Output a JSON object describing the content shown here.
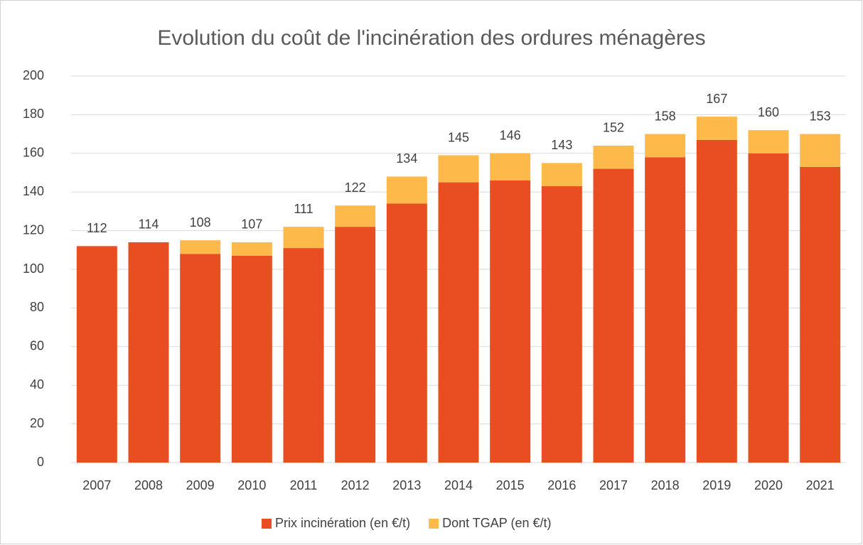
{
  "chart_data": {
    "type": "stacked_bar",
    "title": "Evolution du coût de l'incinération des ordures ménagères",
    "categories": [
      "2007",
      "2008",
      "2009",
      "2010",
      "2011",
      "2012",
      "2013",
      "2014",
      "2015",
      "2016",
      "2017",
      "2018",
      "2019",
      "2020",
      "2021"
    ],
    "series": [
      {
        "name": "Prix incinération (en €/t)",
        "color": "#e84e22",
        "values": [
          112,
          114,
          108,
          107,
          111,
          122,
          134,
          145,
          146,
          143,
          152,
          158,
          167,
          160,
          153
        ]
      },
      {
        "name": "Dont TGAP (en €/t)",
        "color": "#fdb94a",
        "values": [
          0,
          0,
          7,
          7,
          11,
          11,
          14,
          14,
          14,
          12,
          12,
          12,
          12,
          12,
          17
        ]
      }
    ],
    "ylim": [
      0,
      200
    ],
    "yticks": [
      0,
      20,
      40,
      60,
      80,
      100,
      120,
      140,
      160,
      180,
      200
    ],
    "grid": true,
    "legend": "bottom"
  }
}
